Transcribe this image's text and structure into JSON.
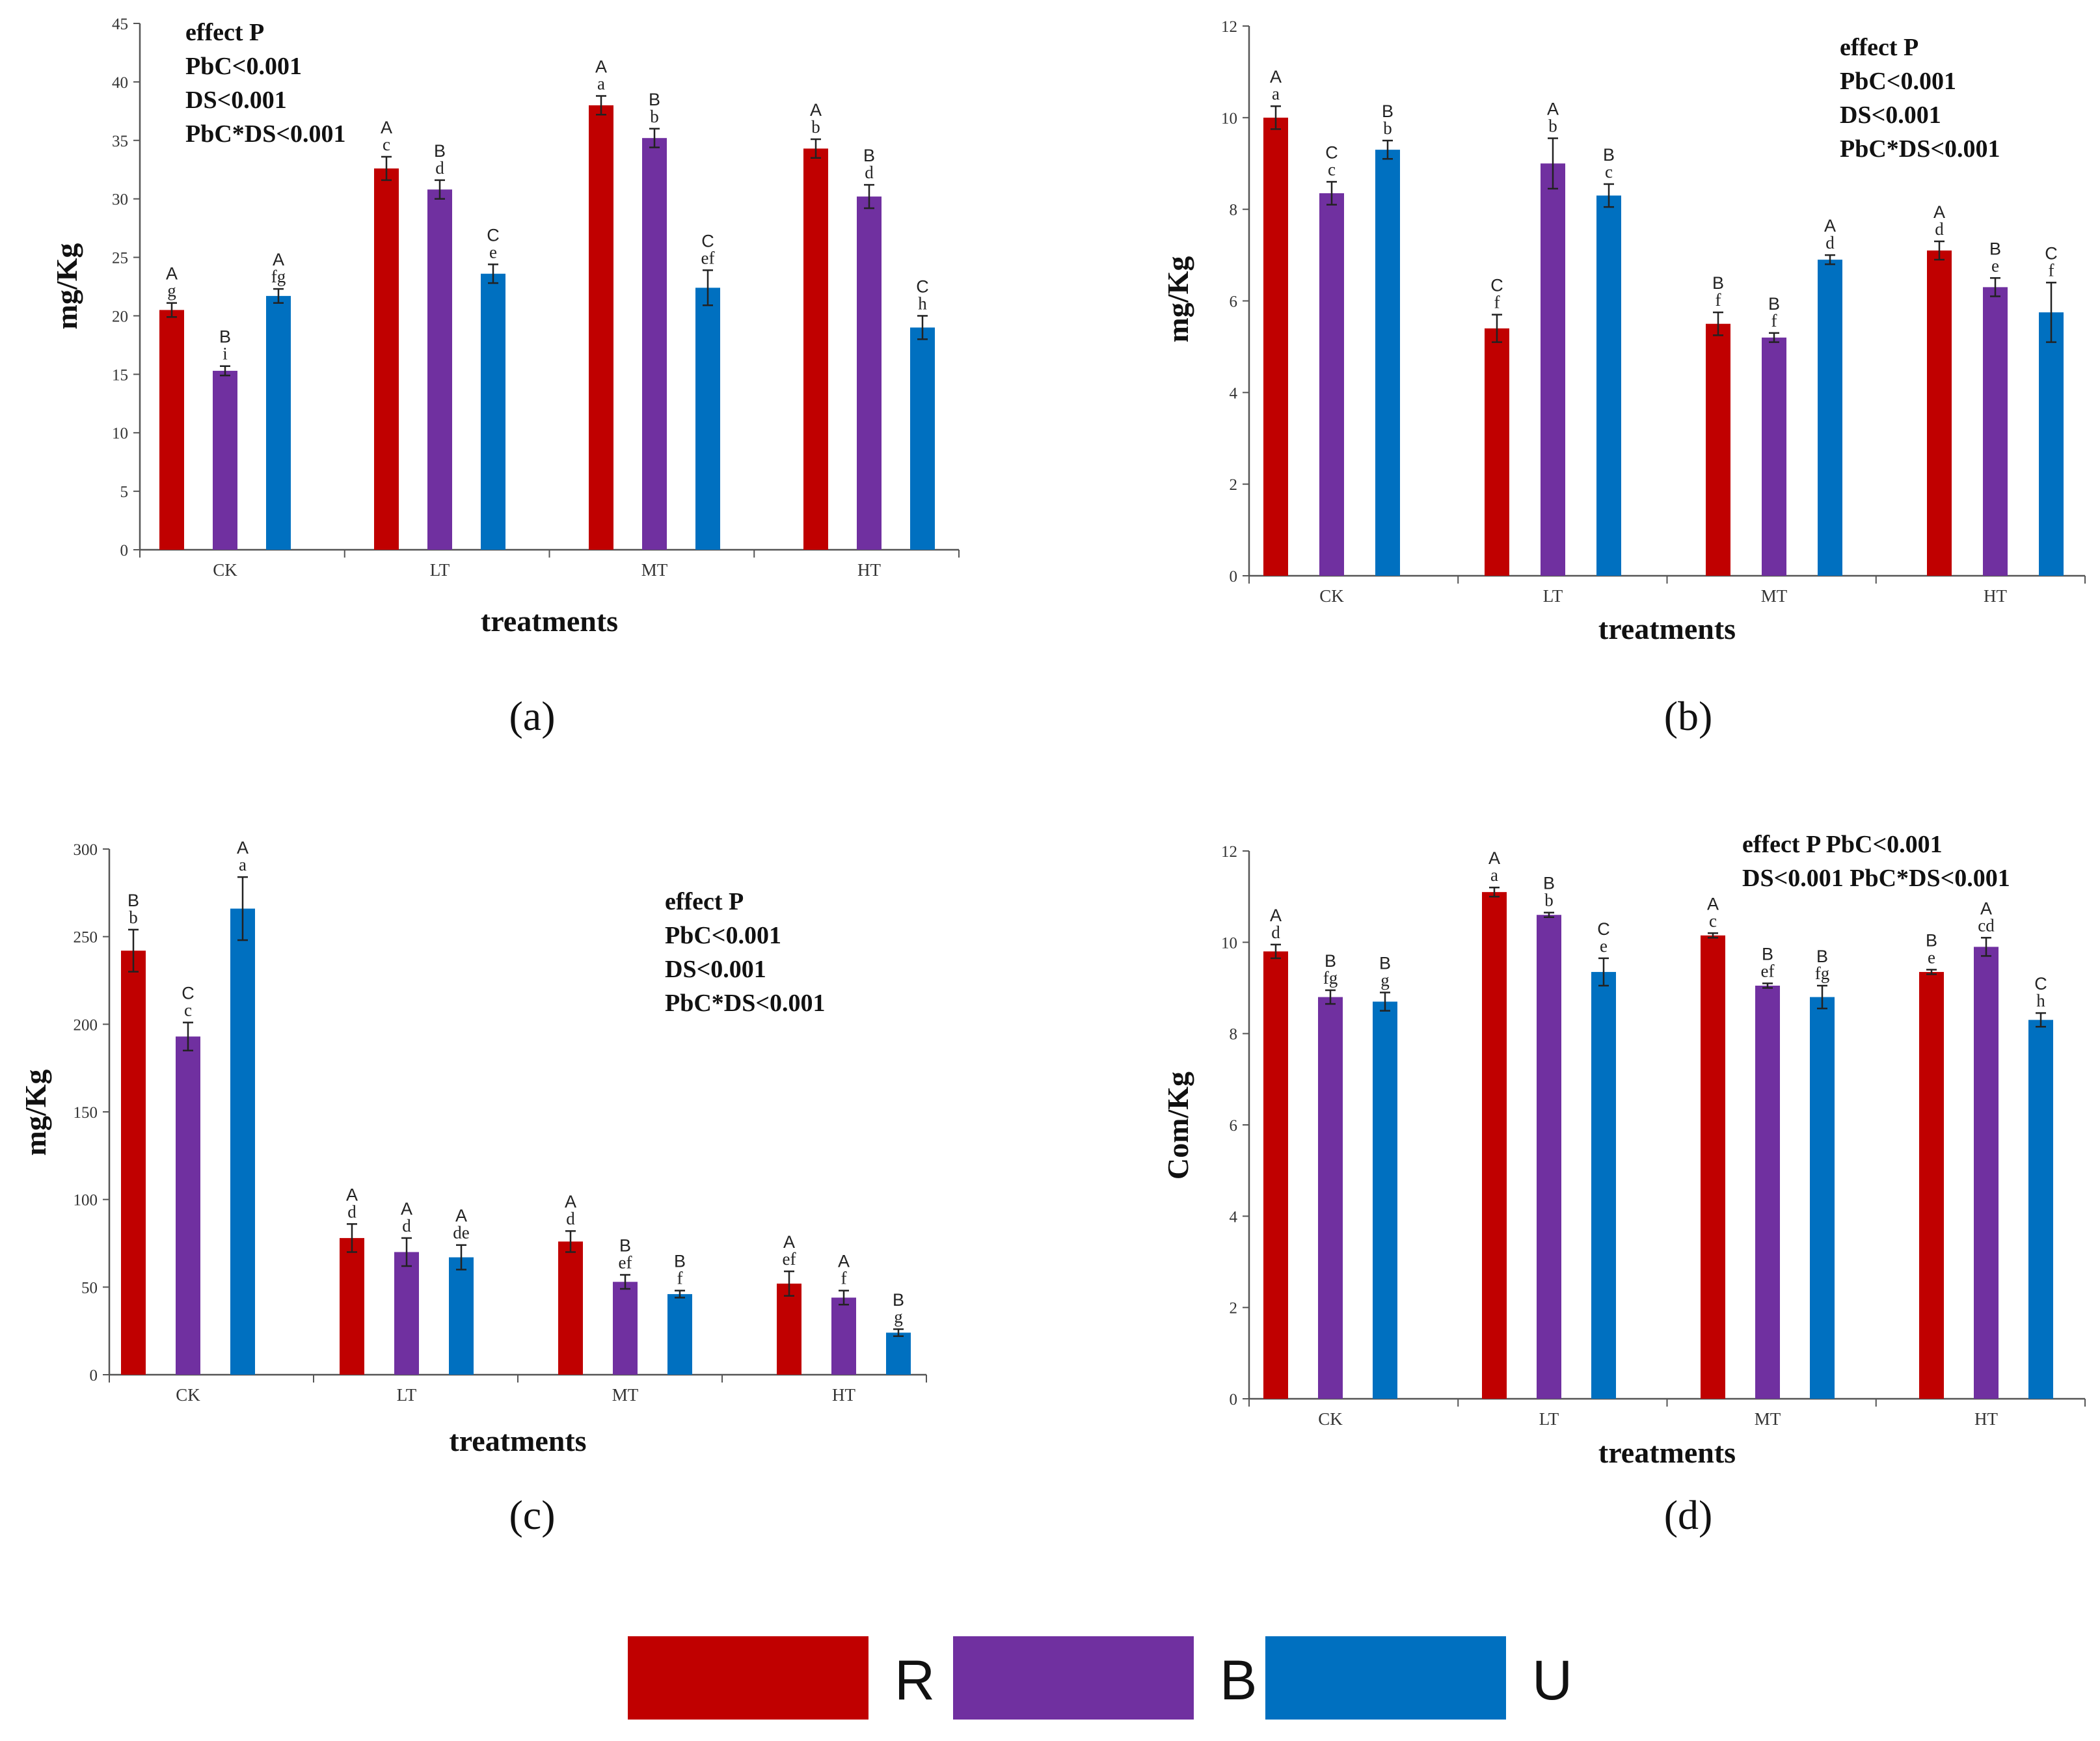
{
  "chart_data": [
    {
      "type": "bar",
      "panel_label": "(a)",
      "categories": [
        "CK",
        "LT",
        "MT",
        "HT"
      ],
      "series_names": [
        "R",
        "B",
        "U"
      ],
      "colors": [
        "#c00000",
        "#7030a0",
        "#0070c0"
      ],
      "values": [
        [
          20.5,
          15.3,
          21.7
        ],
        [
          32.6,
          30.8,
          23.6
        ],
        [
          38.0,
          35.2,
          22.4
        ],
        [
          34.3,
          30.2,
          19.0
        ]
      ],
      "errors": [
        [
          0.6,
          0.4,
          0.6
        ],
        [
          1.0,
          0.8,
          0.8
        ],
        [
          0.8,
          0.8,
          1.5
        ],
        [
          0.8,
          1.0,
          1.0
        ]
      ],
      "upper_letters": [
        [
          "A",
          "B",
          "A"
        ],
        [
          "A",
          "B",
          "C"
        ],
        [
          "A",
          "B",
          "C"
        ],
        [
          "A",
          "B",
          "C"
        ]
      ],
      "lower_letters": [
        [
          "g",
          "i",
          "fg"
        ],
        [
          "c",
          "d",
          "e"
        ],
        [
          "a",
          "b",
          "ef"
        ],
        [
          "b",
          "d",
          "h"
        ]
      ],
      "ylabel": "mg/Kg",
      "xlabel": "treatments",
      "ylim": [
        0,
        45
      ],
      "yticks": [
        "0",
        "5",
        "10",
        "15",
        "20",
        "25",
        "30",
        "35",
        "40",
        "45"
      ],
      "annotation": [
        "effect P",
        "PbC<0.001",
        "DS<0.001",
        "PbC*DS<0.001"
      ],
      "annotation_placement": "top-left"
    },
    {
      "type": "bar",
      "panel_label": "(b)",
      "categories": [
        "CK",
        "LT",
        "MT",
        "HT"
      ],
      "series_names": [
        "R",
        "B",
        "U"
      ],
      "colors": [
        "#c00000",
        "#7030a0",
        "#0070c0"
      ],
      "values": [
        [
          10.0,
          8.35,
          9.3
        ],
        [
          5.4,
          9.0,
          8.3
        ],
        [
          5.5,
          5.2,
          6.9
        ],
        [
          7.1,
          6.3,
          5.75
        ]
      ],
      "errors": [
        [
          0.25,
          0.25,
          0.2
        ],
        [
          0.3,
          0.55,
          0.25
        ],
        [
          0.25,
          0.1,
          0.1
        ],
        [
          0.2,
          0.2,
          0.65
        ]
      ],
      "upper_letters": [
        [
          "A",
          "C",
          "B"
        ],
        [
          "C",
          "A",
          "B"
        ],
        [
          "B",
          "B",
          "A"
        ],
        [
          "A",
          "B",
          "C"
        ]
      ],
      "lower_letters": [
        [
          "a",
          "c",
          "b"
        ],
        [
          "f",
          "b",
          "c"
        ],
        [
          "f",
          "f",
          "d"
        ],
        [
          "d",
          "e",
          "f"
        ]
      ],
      "ylabel": "mg/Kg",
      "xlabel": "treatments",
      "ylim": [
        0,
        12
      ],
      "yticks": [
        "0",
        "2",
        "4",
        "6",
        "8",
        "10",
        "12"
      ],
      "annotation": [
        "effect P",
        "PbC<0.001",
        "DS<0.001",
        "PbC*DS<0.001"
      ],
      "annotation_placement": "top-right"
    },
    {
      "type": "bar",
      "panel_label": "(c)",
      "categories": [
        "CK",
        "LT",
        "MT",
        "HT"
      ],
      "series_names": [
        "R",
        "B",
        "U"
      ],
      "colors": [
        "#c00000",
        "#7030a0",
        "#0070c0"
      ],
      "values": [
        [
          242,
          193,
          266
        ],
        [
          78,
          70,
          67
        ],
        [
          76,
          53,
          46
        ],
        [
          52,
          44,
          24
        ]
      ],
      "errors": [
        [
          12,
          8,
          18
        ],
        [
          8,
          8,
          7
        ],
        [
          6,
          4,
          2
        ],
        [
          7,
          4,
          2
        ]
      ],
      "upper_letters": [
        [
          "B",
          "C",
          "A"
        ],
        [
          "A",
          "A",
          "A"
        ],
        [
          "A",
          "B",
          "B"
        ],
        [
          "A",
          "A",
          "B"
        ]
      ],
      "lower_letters": [
        [
          "b",
          "c",
          "a"
        ],
        [
          "d",
          "d",
          "de"
        ],
        [
          "d",
          "ef",
          "f"
        ],
        [
          "ef",
          "f",
          "g"
        ]
      ],
      "ylabel": "mg/Kg",
      "xlabel": "treatments",
      "ylim": [
        0,
        300
      ],
      "yticks": [
        "0",
        "50",
        "100",
        "150",
        "200",
        "250",
        "300"
      ],
      "annotation": [
        "effect P",
        "PbC<0.001",
        "DS<0.001",
        "PbC*DS<0.001"
      ],
      "annotation_placement": "right"
    },
    {
      "type": "bar",
      "panel_label": "(d)",
      "categories": [
        "CK",
        "LT",
        "MT",
        "HT"
      ],
      "series_names": [
        "R",
        "B",
        "U"
      ],
      "colors": [
        "#c00000",
        "#7030a0",
        "#0070c0"
      ],
      "values": [
        [
          9.8,
          8.8,
          8.7
        ],
        [
          11.1,
          10.6,
          9.35
        ],
        [
          10.15,
          9.05,
          8.8
        ],
        [
          9.35,
          9.9,
          8.3
        ]
      ],
      "errors": [
        [
          0.15,
          0.15,
          0.2
        ],
        [
          0.1,
          0.05,
          0.3
        ],
        [
          0.05,
          0.05,
          0.25
        ],
        [
          0.05,
          0.2,
          0.15
        ]
      ],
      "upper_letters": [
        [
          "A",
          "B",
          "B"
        ],
        [
          "A",
          "B",
          "C"
        ],
        [
          "A",
          "B",
          "B"
        ],
        [
          "B",
          "A",
          "C"
        ]
      ],
      "lower_letters": [
        [
          "d",
          "fg",
          "g"
        ],
        [
          "a",
          "b",
          "e"
        ],
        [
          "c",
          "ef",
          "fg"
        ],
        [
          "e",
          "cd",
          "h"
        ]
      ],
      "ylabel": "Com/Kg",
      "xlabel": "treatments",
      "ylim": [
        0,
        12
      ],
      "yticks": [
        "0",
        "2",
        "4",
        "6",
        "8",
        "10",
        "12"
      ],
      "annotation": [
        "effect P   PbC<0.001",
        "DS<0.001  PbC*DS<0.001"
      ],
      "annotation_placement": "top-right"
    }
  ],
  "legend": {
    "placement": "bottom-center",
    "items": [
      {
        "label": "R",
        "color": "#c00000"
      },
      {
        "label": "B",
        "color": "#7030a0"
      },
      {
        "label": "U",
        "color": "#0070c0"
      }
    ]
  }
}
